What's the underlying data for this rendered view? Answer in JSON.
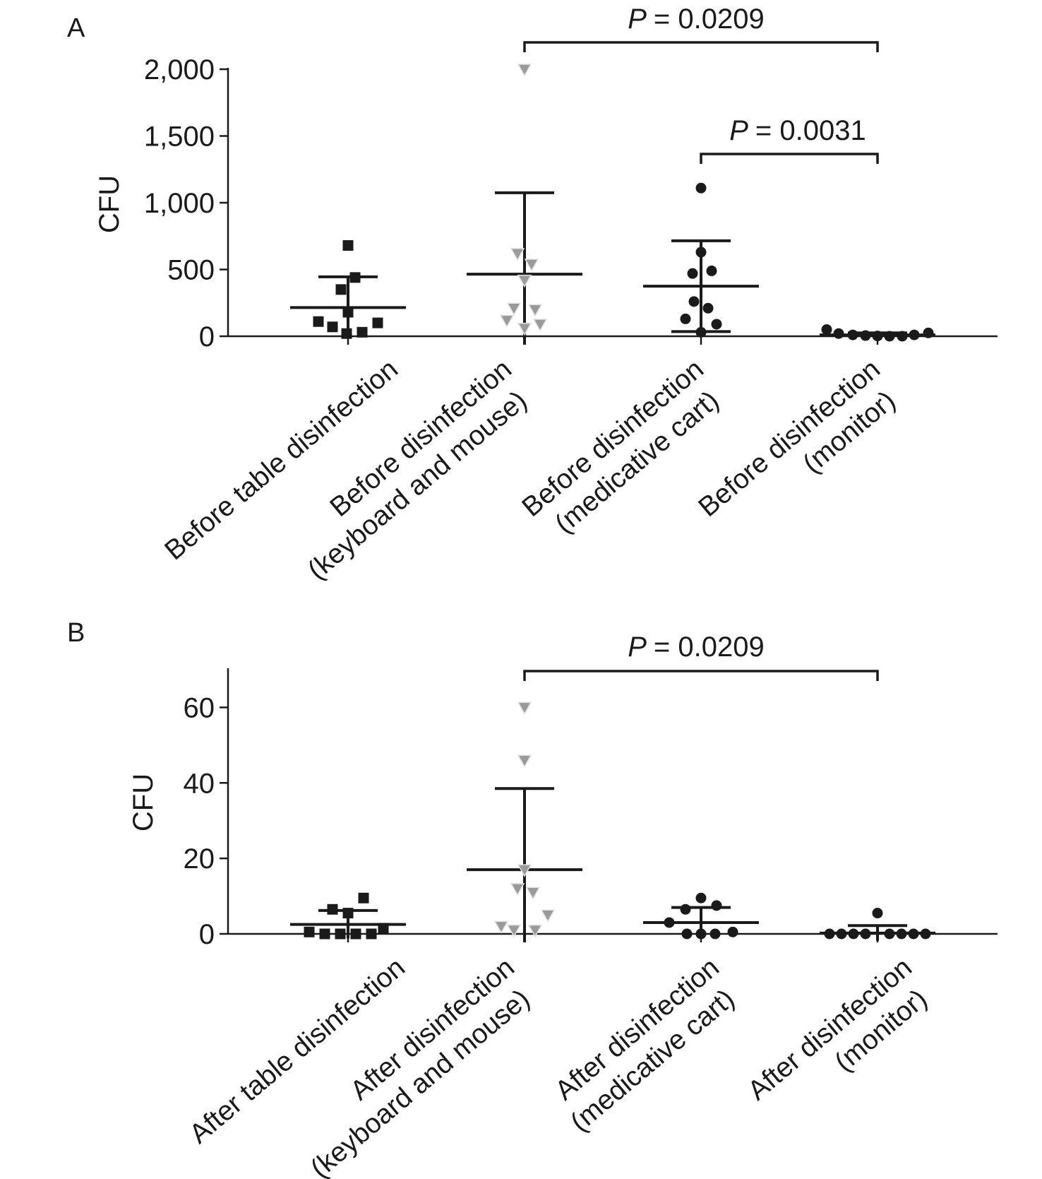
{
  "figure": {
    "panels": [
      {
        "letter": "A",
        "ylabel": "CFU",
        "y_ticks": [
          "0",
          "500",
          "1,000",
          "1,500",
          "2,000"
        ],
        "categories": [
          [
            "Before table disinfection"
          ],
          [
            "Before disinfection",
            "(keyboard and mouse)"
          ],
          [
            "Before disinfection",
            "(medicative cart)"
          ],
          [
            "Before disinfection",
            "(monitor)"
          ]
        ],
        "comparisons": [
          {
            "p_prefix": "P",
            "p_value": "= 0.0209"
          },
          {
            "p_prefix": "P",
            "p_value": "= 0.0031"
          }
        ]
      },
      {
        "letter": "B",
        "ylabel": "CFU",
        "y_ticks": [
          "0",
          "20",
          "40",
          "60"
        ],
        "categories": [
          [
            "After table disinfection"
          ],
          [
            "After disinfection",
            "(keyboard and mouse)"
          ],
          [
            "After disinfection",
            "(medicative cart)"
          ],
          [
            "After disinfection",
            "(monitor)"
          ]
        ],
        "comparisons": [
          {
            "p_prefix": "P",
            "p_value": "= 0.0209"
          }
        ]
      }
    ]
  },
  "chart_data": [
    {
      "type": "scatter",
      "panel": "A",
      "title": "",
      "xlabel": "",
      "ylabel": "CFU",
      "ylim": [
        0,
        2000
      ],
      "y_ticks": [
        0,
        500,
        1000,
        1500,
        2000
      ],
      "categories": [
        "Before table disinfection",
        "Before disinfection (keyboard and mouse)",
        "Before disinfection (medicative cart)",
        "Before disinfection (monitor)"
      ],
      "series": [
        {
          "category_index": 0,
          "marker": "square",
          "color": "#1a1a1a",
          "values": [
            680,
            440,
            350,
            180,
            110,
            70,
            20,
            30,
            100
          ],
          "offsets": [
            0,
            10,
            -10,
            0,
            -42,
            -22,
            -2,
            20,
            42
          ],
          "mean": 215,
          "sd_upper": 445,
          "sd_lower": -15
        },
        {
          "category_index": 1,
          "marker": "triangle-down",
          "color": "#9a9a9a",
          "values": [
            2000,
            620,
            540,
            420,
            210,
            200,
            120,
            90,
            60
          ],
          "offsets": [
            0,
            -10,
            10,
            0,
            -15,
            15,
            -25,
            22,
            0
          ],
          "mean": 465,
          "sd_upper": 1075,
          "sd_lower": -145
        },
        {
          "category_index": 2,
          "marker": "circle",
          "color": "#1a1a1a",
          "values": [
            1110,
            630,
            490,
            470,
            260,
            210,
            130,
            90,
            30
          ],
          "offsets": [
            0,
            0,
            15,
            -12,
            -10,
            10,
            -22,
            22,
            0
          ],
          "mean": 375,
          "sd_upper": 715,
          "sd_lower": 35
        },
        {
          "category_index": 3,
          "marker": "circle",
          "color": "#1a1a1a",
          "values": [
            50,
            20,
            10,
            5,
            2,
            0,
            0,
            10,
            25
          ],
          "offsets": [
            -72,
            -55,
            -35,
            -17,
            0,
            17,
            35,
            52,
            72
          ],
          "mean": 10,
          "sd_upper": 25,
          "sd_lower": -5
        }
      ],
      "comparisons": [
        {
          "from": 1,
          "to": 3,
          "p": 0.0209
        },
        {
          "from": 2,
          "to": 3,
          "p": 0.0031
        }
      ]
    },
    {
      "type": "scatter",
      "panel": "B",
      "title": "",
      "xlabel": "",
      "ylabel": "CFU",
      "ylim": [
        0,
        70
      ],
      "y_ticks": [
        0,
        20,
        40,
        60
      ],
      "categories": [
        "After table disinfection",
        "After disinfection (keyboard and mouse)",
        "After disinfection (medicative cart)",
        "After disinfection (monitor)"
      ],
      "series": [
        {
          "category_index": 0,
          "marker": "square",
          "color": "#1a1a1a",
          "values": [
            9.5,
            6.5,
            5.5,
            1.5,
            0.5,
            0,
            0,
            0,
            0
          ],
          "offsets": [
            22,
            -22,
            0,
            50,
            -55,
            -33,
            -11,
            11,
            33
          ],
          "mean": 2.5,
          "sd_upper": 6.2,
          "sd_lower": -1.2
        },
        {
          "category_index": 1,
          "marker": "triangle-down",
          "color": "#9a9a9a",
          "values": [
            60,
            46,
            17,
            12,
            11,
            5,
            2,
            1,
            1
          ],
          "offsets": [
            0,
            0,
            0,
            -10,
            12,
            33,
            -33,
            -15,
            15
          ],
          "mean": 17,
          "sd_upper": 38.5,
          "sd_lower": -4.5
        },
        {
          "category_index": 2,
          "marker": "circle",
          "color": "#1a1a1a",
          "values": [
            9.5,
            7.5,
            6.5,
            3,
            0.5,
            0,
            0,
            0,
            0
          ],
          "offsets": [
            0,
            22,
            -22,
            -45,
            45,
            -20,
            0,
            20,
            0
          ],
          "mean": 3,
          "sd_upper": 7,
          "sd_lower": -1
        },
        {
          "category_index": 3,
          "marker": "circle",
          "color": "#1a1a1a",
          "values": [
            5.5,
            0,
            0,
            0,
            0,
            0,
            0,
            0,
            0
          ],
          "offsets": [
            0,
            -68,
            -51,
            -34,
            -17,
            17,
            34,
            51,
            68
          ],
          "mean": 0.2,
          "sd_upper": 2.2,
          "sd_lower": -1.8
        }
      ],
      "comparisons": [
        {
          "from": 1,
          "to": 3,
          "p": 0.0209
        }
      ]
    }
  ]
}
